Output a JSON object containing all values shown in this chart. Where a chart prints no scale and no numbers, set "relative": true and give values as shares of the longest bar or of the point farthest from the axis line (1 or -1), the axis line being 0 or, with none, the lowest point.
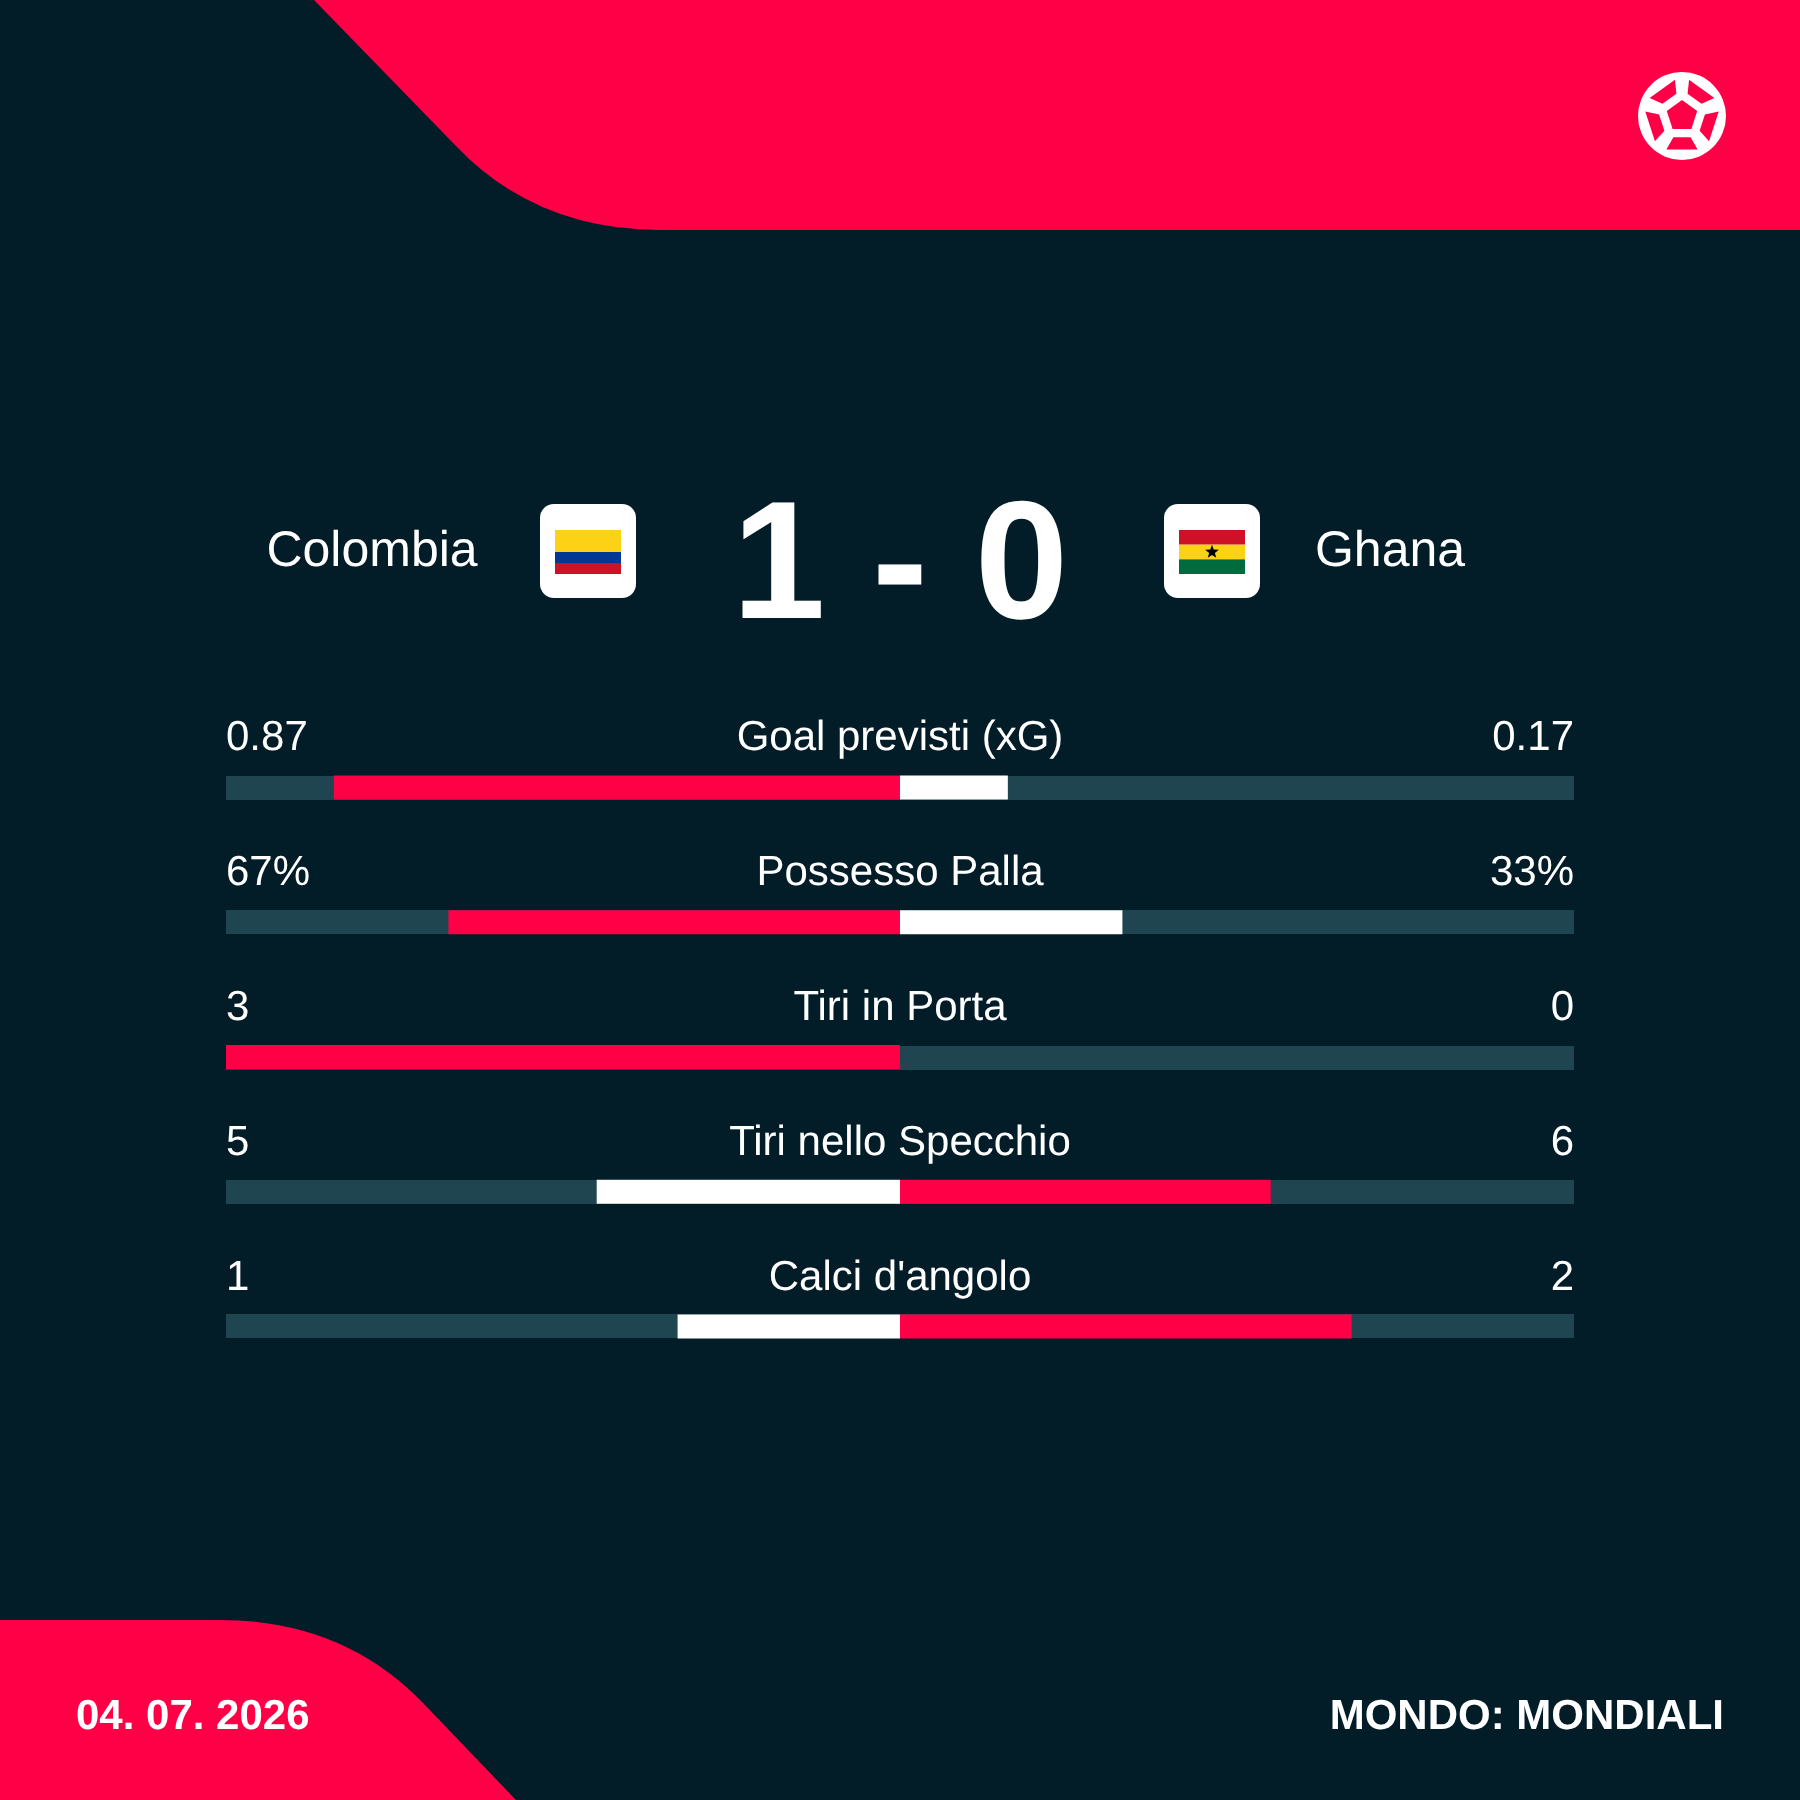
{
  "chart_data": [
    {
      "type": "other",
      "title": "1 - 0",
      "annotations": [
        "Colombia",
        "Ghana"
      ]
    },
    {
      "type": "bar",
      "orientation": "horizontal",
      "relative": true,
      "stacked": true,
      "tick_labels": "y",
      "categories": [
        "Goal previsti (xG)",
        "Possesso Palla",
        "Tiri in Porta",
        "Tiri nello Specchio",
        "Calci d'angolo"
      ],
      "series": [
        {
          "colors": [
            "#ff0046",
            "#ff0046",
            "#ff0046",
            "#ffffff",
            "#ffffff"
          ],
          "values": [
            -0.84,
            -0.67,
            -1,
            -0.45,
            -0.33
          ]
        },
        {
          "colors": [
            "#ffffff",
            "#ffffff",
            "#ffffff",
            "#ff0046",
            "#ff0046"
          ],
          "values": [
            0.16,
            0.33,
            0,
            0.55,
            0.67
          ]
        }
      ],
      "annotations": [
        "0.87",
        "0.17",
        "67%",
        "33%",
        "3",
        "0",
        "5",
        "6",
        "1",
        "2"
      ]
    },
    {
      "type": "other",
      "annotations": [
        "04. 07. 2026",
        "MONDO: MONDIALI"
      ]
    }
  ]
}
